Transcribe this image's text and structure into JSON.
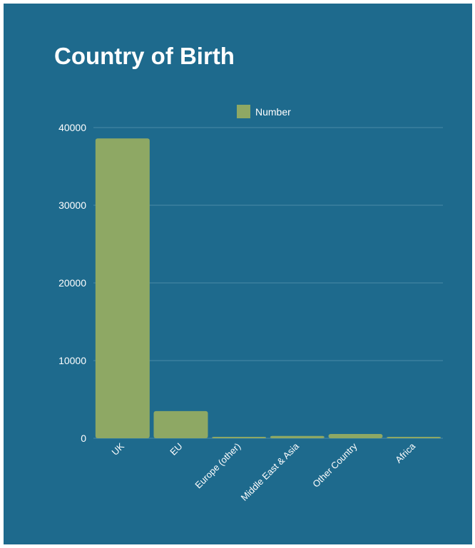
{
  "colors": {
    "background": "#1e6a8d",
    "bar": "#8ea864",
    "gridline": "#4a8aa8",
    "text": "#ffffff"
  },
  "chart_data": {
    "type": "bar",
    "title": "Country of Birth",
    "xlabel": "",
    "ylabel": "",
    "categories": [
      "UK",
      "EU",
      "Europe (other)",
      "Middle East & Asia",
      "Other Country",
      "Africa"
    ],
    "series": [
      {
        "name": "Number",
        "values": [
          38600,
          3500,
          100,
          300,
          550,
          120
        ]
      }
    ],
    "ylim": [
      0,
      40000
    ],
    "yticks": [
      0,
      10000,
      20000,
      30000,
      40000
    ],
    "grid": true,
    "legend": "top-center"
  }
}
